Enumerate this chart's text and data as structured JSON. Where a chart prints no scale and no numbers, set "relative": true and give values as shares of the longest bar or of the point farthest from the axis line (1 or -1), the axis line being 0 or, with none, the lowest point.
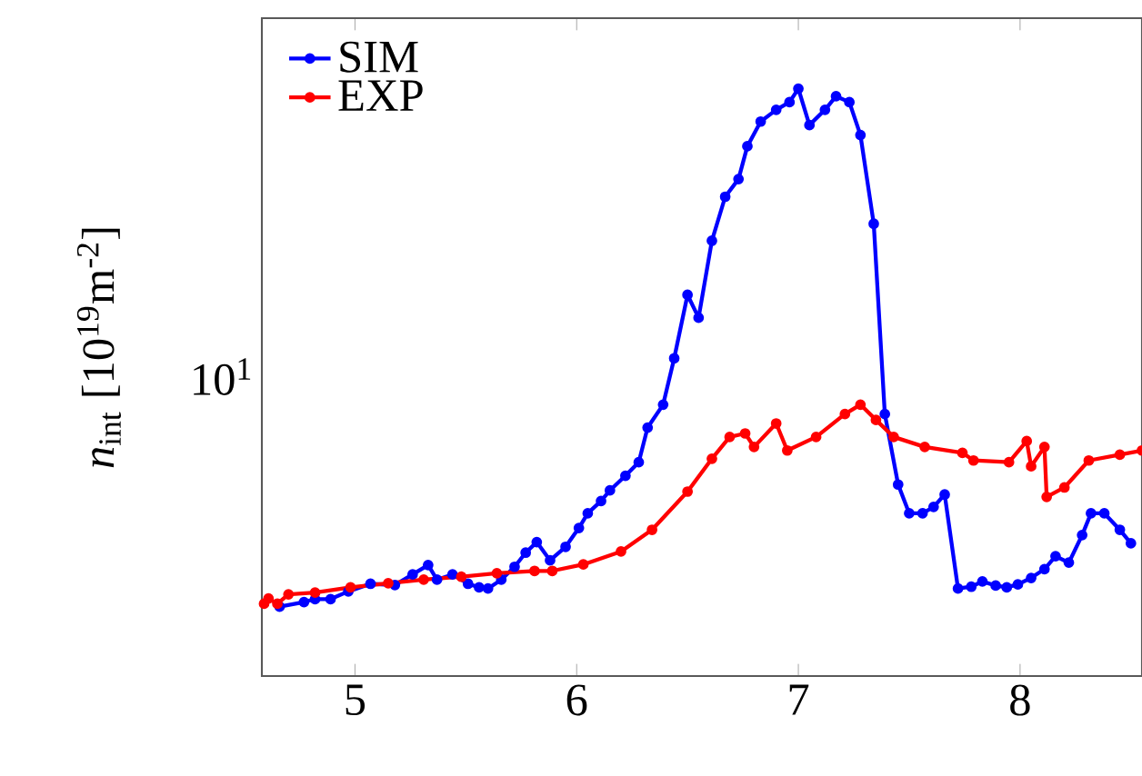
{
  "chart_data": {
    "type": "line",
    "ylabel": "*n*$_{int}$ [10$^{19}$m$^{-2}$]",
    "relative": true,
    "annotations": [
      "10$^{1}$"
    ],
    "xlim": [
      4.58,
      8.55
    ],
    "xticks": [
      5,
      6,
      7,
      8
    ],
    "grid": false,
    "legend": "top left",
    "marker": "circle",
    "line_style": "solid",
    "series": [
      {
        "name": "SIM",
        "color": "#0000ff",
        "x": [
          4.66,
          4.77,
          4.82,
          4.89,
          4.97,
          5.07,
          5.18,
          5.26,
          5.33,
          5.37,
          5.44,
          5.51,
          5.56,
          5.6,
          5.66,
          5.72,
          5.77,
          5.82,
          5.88,
          5.95,
          6.01,
          6.05,
          6.11,
          6.15,
          6.22,
          6.28,
          6.32,
          6.39,
          6.44,
          6.5,
          6.55,
          6.61,
          6.67,
          6.73,
          6.77,
          6.83,
          6.9,
          6.96,
          7.0,
          7.05,
          7.12,
          7.17,
          7.23,
          7.28,
          7.34,
          7.39,
          7.45,
          7.5,
          7.56,
          7.61,
          7.66,
          7.72,
          7.78,
          7.83,
          7.89,
          7.94,
          7.99,
          8.05,
          8.11,
          8.16,
          8.22,
          8.28,
          8.32,
          8.38,
          8.45,
          8.5
        ],
        "values": [
          0.118,
          0.126,
          0.131,
          0.131,
          0.144,
          0.157,
          0.155,
          0.173,
          0.189,
          0.164,
          0.173,
          0.157,
          0.151,
          0.149,
          0.164,
          0.186,
          0.21,
          0.228,
          0.197,
          0.22,
          0.252,
          0.277,
          0.298,
          0.316,
          0.341,
          0.364,
          0.423,
          0.462,
          0.541,
          0.649,
          0.61,
          0.741,
          0.816,
          0.846,
          0.902,
          0.944,
          0.964,
          0.977,
          1,
          0.938,
          0.964,
          0.987,
          0.977,
          0.921,
          0.77,
          0.446,
          0.326,
          0.277,
          0.277,
          0.288,
          0.309,
          0.149,
          0.152,
          0.161,
          0.154,
          0.151,
          0.156,
          0.167,
          0.182,
          0.204,
          0.193,
          0.24,
          0.277,
          0.277,
          0.249,
          0.226
        ]
      },
      {
        "name": "EXP",
        "color": "#ff0000",
        "x": [
          4.59,
          4.61,
          4.65,
          4.7,
          4.82,
          4.98,
          5.15,
          5.31,
          5.48,
          5.64,
          5.81,
          5.89,
          6.03,
          6.2,
          6.34,
          6.5,
          6.61,
          6.69,
          6.76,
          6.8,
          6.9,
          6.95,
          7.08,
          7.21,
          7.28,
          7.35,
          7.43,
          7.57,
          7.74,
          7.79,
          7.95,
          8.03,
          8.05,
          8.11,
          8.12,
          8.2,
          8.31,
          8.45,
          8.55
        ],
        "values": [
          0.123,
          0.132,
          0.123,
          0.139,
          0.142,
          0.151,
          0.158,
          0.164,
          0.169,
          0.175,
          0.179,
          0.179,
          0.19,
          0.212,
          0.249,
          0.314,
          0.37,
          0.407,
          0.413,
          0.39,
          0.43,
          0.384,
          0.407,
          0.446,
          0.462,
          0.436,
          0.407,
          0.39,
          0.38,
          0.367,
          0.364,
          0.4,
          0.357,
          0.39,
          0.305,
          0.321,
          0.367,
          0.377,
          0.384
        ]
      }
    ]
  }
}
